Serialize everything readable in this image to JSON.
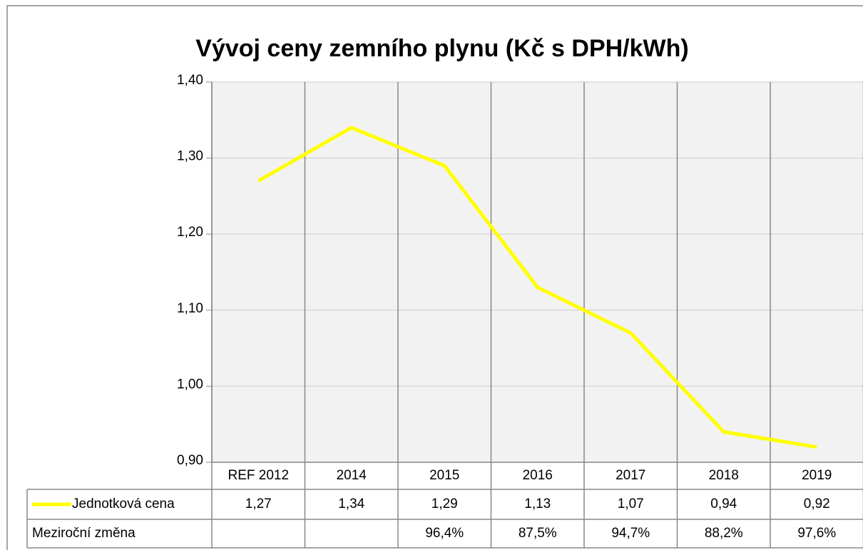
{
  "chart_data": {
    "type": "line",
    "title": "Vývoj ceny zemního plynu (Kč s DPH/kWh)",
    "categories": [
      "REF 2012",
      "2014",
      "2015",
      "2016",
      "2017",
      "2018",
      "2019"
    ],
    "series": [
      {
        "name": "Jednotková cena",
        "color": "#ffff00",
        "values": [
          1.27,
          1.34,
          1.29,
          1.13,
          1.07,
          0.94,
          0.92
        ],
        "value_labels": [
          "1,27",
          "1,34",
          "1,29",
          "1,13",
          "1,07",
          "0,94",
          "0,92"
        ]
      }
    ],
    "table_rows": [
      {
        "name": "Meziroční změna",
        "values": [
          null,
          null,
          96.4,
          87.5,
          94.7,
          88.2,
          97.6
        ],
        "value_labels": [
          null,
          null,
          "96,4%",
          "87,5%",
          "94,7%",
          "88,2%",
          "97,6%"
        ]
      }
    ],
    "ylim": [
      0.9,
      1.4
    ],
    "yticks": [
      {
        "value": 0.9,
        "label": "0,90"
      },
      {
        "value": 1.0,
        "label": "1,00"
      },
      {
        "value": 1.1,
        "label": "1,10"
      },
      {
        "value": 1.2,
        "label": "1,20"
      },
      {
        "value": 1.3,
        "label": "1,30"
      },
      {
        "value": 1.4,
        "label": "1,40"
      }
    ],
    "grid": true
  }
}
